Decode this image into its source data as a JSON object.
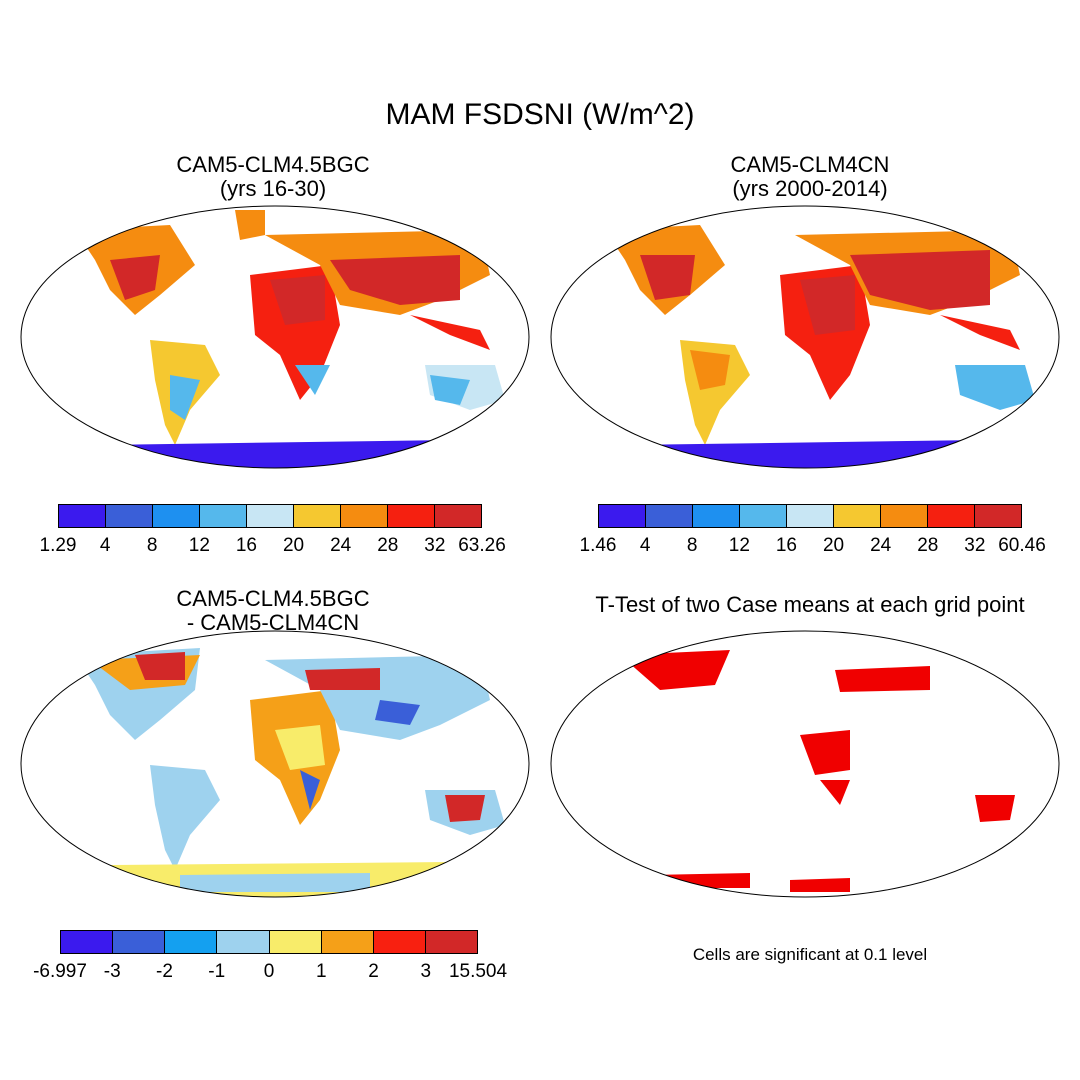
{
  "title": "MAM FSDSNI (W/m^2)",
  "panels": [
    {
      "title_line1": "CAM5-CLM4.5BGC",
      "title_line2": "(yrs 16-30)",
      "colorbar": {
        "colors": [
          "#3b1aee",
          "#3a5fd8",
          "#1e90f0",
          "#55b8ec",
          "#c8e6f4",
          "#f5c830",
          "#f58c10",
          "#f52010",
          "#d22828"
        ],
        "labels": [
          "1.29",
          "4",
          "8",
          "12",
          "16",
          "20",
          "24",
          "28",
          "32",
          "63.26"
        ]
      }
    },
    {
      "title_line1": "CAM5-CLM4CN",
      "title_line2": "(yrs 2000-2014)",
      "colorbar": {
        "colors": [
          "#3b1aee",
          "#3a5fd8",
          "#1e90f0",
          "#55b8ec",
          "#c8e6f4",
          "#f5c830",
          "#f58c10",
          "#f52010",
          "#d22828"
        ],
        "labels": [
          "1.46",
          "4",
          "8",
          "12",
          "16",
          "20",
          "24",
          "28",
          "32",
          "60.46"
        ]
      }
    },
    {
      "title_line1": "CAM5-CLM4.5BGC",
      "title_line2": "- CAM5-CLM4CN",
      "colorbar": {
        "colors": [
          "#3b1aee",
          "#3a5fd8",
          "#14a0f0",
          "#9ed2ee",
          "#f8ec6a",
          "#f5a018",
          "#f82010",
          "#d22828"
        ],
        "labels": [
          "-6.997",
          "-3",
          "-2",
          "-1",
          "0",
          "1",
          "2",
          "3",
          "15.504"
        ]
      }
    },
    {
      "title_line1": "T-Test of two Case means at each grid point",
      "note": "Cells are significant at 0.1 level",
      "significance_color": "#f00000"
    }
  ]
}
